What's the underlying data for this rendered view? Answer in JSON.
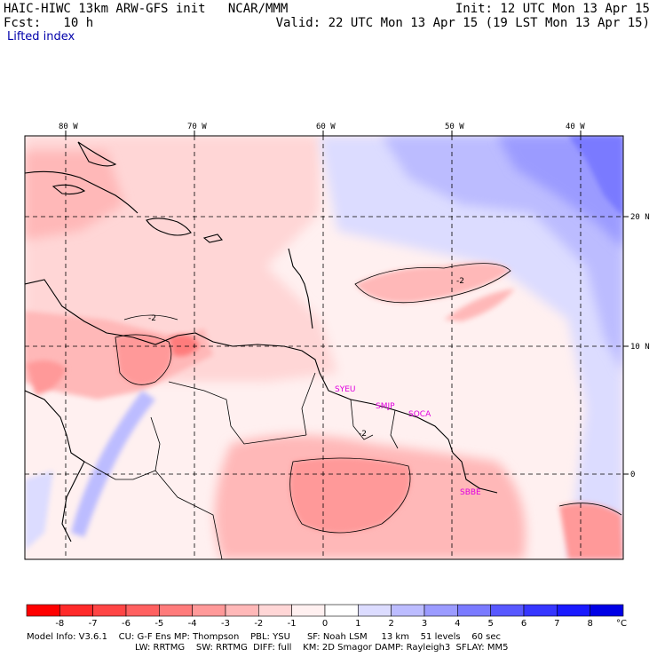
{
  "header": {
    "title": "HAIC-HIWC 13km ARW-GFS init   NCAR/MMM",
    "forecast": "Fcst:   10 h",
    "field": "Lifted index",
    "init": "Init: 12 UTC Mon 13 Apr 15",
    "valid": "Valid: 22 UTC Mon 13 Apr 15 (19 LST Mon 13 Apr 15)"
  },
  "map": {
    "lon_labels": [
      "80 W",
      "70 W",
      "60 W",
      "50 W",
      "40 W"
    ],
    "lat_labels": [
      "20 N",
      "10 N",
      "0"
    ],
    "sites": [
      "SYEU",
      "SMJP",
      "SOCA",
      "SBBE"
    ],
    "contour_label": "-2"
  },
  "colorbar": {
    "ticks": [
      "-8",
      "-7",
      "-6",
      "-5",
      "-4",
      "-3",
      "-2",
      "-1",
      "0",
      "1",
      "2",
      "3",
      "4",
      "5",
      "6",
      "7",
      "8"
    ],
    "unit": "°C",
    "colors": [
      "#ff0000",
      "#ff2a2a",
      "#ff4545",
      "#ff6060",
      "#ff7b7b",
      "#ff9999",
      "#ffb8b8",
      "#ffd6d6",
      "#fff0f0",
      "#ffffff",
      "#dcdcff",
      "#bcbcff",
      "#9b9bff",
      "#7a7aff",
      "#5858ff",
      "#3636ff",
      "#1a1aff",
      "#0000e6"
    ]
  },
  "footer": {
    "line1": "Model Info: V3.6.1    CU: G-F Ens MP: Thompson    PBL: YSU      SF: Noah LSM     13 km    51 levels    60 sec",
    "line2": "LW: RRTMG    SW: RRTMG  DIFF: full    KM: 2D Smagor DAMP: Rayleigh3  SFLAY: MM5"
  }
}
